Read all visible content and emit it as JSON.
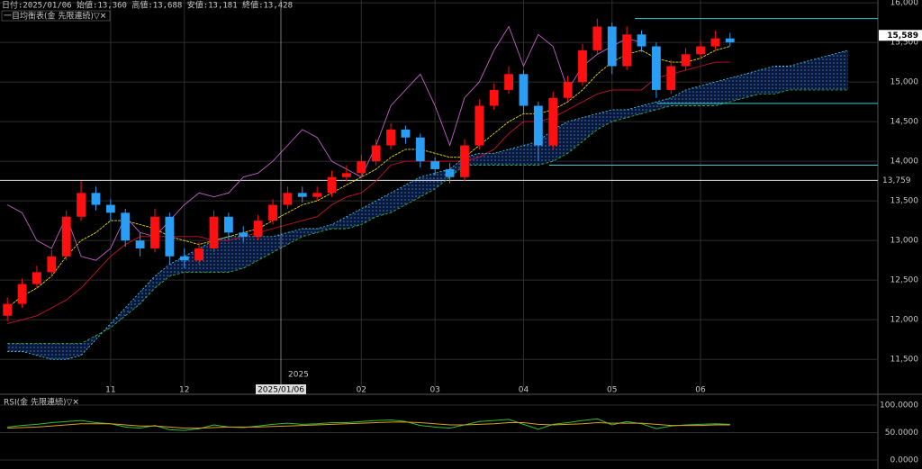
{
  "chart_data": [
    {
      "type": "candlestick",
      "info": "日付:2025/01/06 始値:13,360 高値:13,688 安値:13,181 終値:13,428",
      "title": "一目均衡表(金 先限連続)▽✕",
      "year_label": "2025",
      "cursor_label": "2025/01/06",
      "categories": [
        null,
        null,
        null,
        null,
        null,
        null,
        null,
        "11",
        null,
        null,
        null,
        null,
        "12",
        null,
        null,
        null,
        null,
        null,
        null,
        null,
        null,
        null,
        null,
        null,
        "02",
        null,
        null,
        null,
        null,
        "03",
        null,
        null,
        null,
        null,
        null,
        "04",
        null,
        null,
        null,
        null,
        null,
        "05",
        null,
        null,
        null,
        null,
        null,
        "06",
        null,
        null,
        null,
        null,
        null,
        null,
        null,
        null,
        null,
        null
      ],
      "open": [
        12050,
        12200,
        12450,
        12600,
        12800,
        13300,
        13600,
        13450,
        13350,
        13000,
        12900,
        13300,
        12800,
        12750,
        12900,
        13300,
        13100,
        13050,
        13250,
        13450,
        13600,
        13550,
        13600,
        13800,
        13850,
        14000,
        14200,
        14400,
        14300,
        14000,
        13900,
        13800,
        14200,
        14700,
        14900,
        15100,
        14700,
        14200,
        14800,
        15000,
        15400,
        15700,
        15200,
        15600,
        15450,
        14900,
        15200,
        15350,
        15450,
        15550,
        null,
        null,
        null,
        null,
        null,
        null,
        null,
        null
      ],
      "high": [
        12280,
        12520,
        12680,
        12880,
        13380,
        13750,
        13680,
        13520,
        13400,
        13100,
        13400,
        13350,
        12900,
        12980,
        13380,
        13350,
        13180,
        13320,
        13520,
        13680,
        13680,
        13680,
        13880,
        13950,
        14080,
        14280,
        14480,
        14450,
        14350,
        14050,
        13980,
        14280,
        14780,
        14980,
        15200,
        15150,
        14750,
        14880,
        15080,
        15480,
        15800,
        15750,
        15700,
        15650,
        15500,
        15280,
        15430,
        15520,
        15650,
        15620,
        null,
        null,
        null,
        null,
        null,
        null,
        null,
        null
      ],
      "low": [
        11980,
        12150,
        12400,
        12550,
        12750,
        13250,
        13380,
        13250,
        12920,
        12800,
        12850,
        12700,
        12650,
        12700,
        12850,
        13020,
        12980,
        13000,
        13200,
        13400,
        13480,
        13500,
        13550,
        13750,
        13800,
        13950,
        14150,
        14220,
        13920,
        13820,
        13720,
        13750,
        14150,
        14650,
        14850,
        14600,
        14000,
        14150,
        14750,
        14950,
        15350,
        15100,
        15150,
        15380,
        14800,
        14850,
        15150,
        15300,
        15400,
        15450,
        null,
        null,
        null,
        null,
        null,
        null,
        null,
        null
      ],
      "close": [
        12200,
        12450,
        12600,
        12800,
        13300,
        13600,
        13450,
        13350,
        13000,
        12900,
        13300,
        12800,
        12750,
        12900,
        13300,
        13100,
        13050,
        13250,
        13450,
        13600,
        13550,
        13600,
        13800,
        13850,
        14000,
        14200,
        14400,
        14300,
        14000,
        13900,
        13800,
        14200,
        14700,
        14900,
        15100,
        14700,
        14200,
        14800,
        15000,
        15400,
        15700,
        15200,
        15600,
        15450,
        14900,
        15200,
        15350,
        15450,
        15550,
        15500,
        null,
        null,
        null,
        null,
        null,
        null,
        null,
        null
      ],
      "up_color": "#ff1010",
      "down_color": "#2a9df4",
      "series": [
        {
          "color": "#e6d800",
          "values": [
            12150,
            12300,
            12400,
            12550,
            12800,
            13000,
            13100,
            13250,
            13250,
            13200,
            13150,
            13050,
            13000,
            12950,
            13000,
            13050,
            13100,
            13150,
            13250,
            13350,
            13450,
            13500,
            13600,
            13700,
            13800,
            13900,
            14050,
            14150,
            14150,
            14100,
            14050,
            14050,
            14200,
            14350,
            14500,
            14600,
            14600,
            14650,
            14750,
            14900,
            15100,
            15250,
            15350,
            15400,
            15300,
            15250,
            15250,
            15300,
            15400,
            15450,
            null,
            null,
            null,
            null,
            null,
            null,
            null,
            null
          ]
        },
        {
          "color": "#c8102e",
          "values": [
            11950,
            12000,
            12050,
            12150,
            12250,
            12400,
            12600,
            12800,
            12950,
            13050,
            13050,
            13050,
            13050,
            13050,
            13000,
            13000,
            13050,
            13100,
            13150,
            13200,
            13250,
            13300,
            13450,
            13550,
            13600,
            13750,
            13950,
            14000,
            14000,
            14000,
            14000,
            14000,
            14050,
            14150,
            14350,
            14500,
            14500,
            14550,
            14650,
            14750,
            14850,
            14900,
            14900,
            14900,
            15050,
            15100,
            15150,
            15200,
            15250,
            15250,
            null,
            null,
            null,
            null,
            null,
            null,
            null,
            null
          ]
        },
        {
          "color": "#40c8d0",
          "values": [
            11600,
            11600,
            11550,
            11500,
            11500,
            11550,
            11750,
            11950,
            12150,
            12350,
            12550,
            12700,
            12800,
            12900,
            13000,
            13050,
            13050,
            13050,
            13050,
            13100,
            13150,
            13150,
            13200,
            13300,
            13400,
            13500,
            13600,
            13700,
            13800,
            13850,
            13900,
            14050,
            14100,
            14100,
            14150,
            14200,
            14250,
            14400,
            14500,
            14550,
            14600,
            14650,
            14650,
            14700,
            14750,
            14800,
            14900,
            14950,
            15000,
            15050,
            15100,
            15150,
            15200,
            15200,
            15250,
            15300,
            15350,
            15400
          ]
        },
        {
          "color": "#30b030",
          "values": [
            11700,
            11700,
            11700,
            11700,
            11700,
            11700,
            11800,
            11900,
            12050,
            12200,
            12400,
            12550,
            12600,
            12600,
            12600,
            12600,
            12650,
            12750,
            12850,
            12950,
            13050,
            13100,
            13150,
            13150,
            13200,
            13300,
            13350,
            13450,
            13550,
            13650,
            13800,
            13950,
            13950,
            13950,
            13950,
            13950,
            13950,
            14000,
            14100,
            14250,
            14400,
            14500,
            14550,
            14600,
            14650,
            14700,
            14700,
            14700,
            14700,
            14750,
            14800,
            14850,
            14850,
            14900,
            14900,
            14900,
            14900,
            14900
          ]
        },
        {
          "color": "#c060c8",
          "values": [
            13450,
            13350,
            13000,
            12900,
            13300,
            12800,
            12750,
            12900,
            13300,
            13100,
            13050,
            13250,
            13450,
            13600,
            13550,
            13600,
            13800,
            13850,
            14000,
            14200,
            14400,
            14300,
            14000,
            13900,
            13800,
            14200,
            14700,
            14900,
            15100,
            14700,
            14200,
            14800,
            15000,
            15400,
            15700,
            15200,
            15600,
            15450,
            14900,
            15200,
            15350,
            15450,
            15550,
            15500,
            null,
            null,
            null,
            null,
            null,
            null,
            null,
            null,
            null,
            null,
            null,
            null,
            null,
            null
          ]
        }
      ],
      "cloud_color": "#3a78d8",
      "levels": [
        15800,
        14730,
        13950
      ],
      "level_color": "#40c8d0",
      "price_line": {
        "value": 13759,
        "label": "13,759"
      },
      "last_price": {
        "value": 15589,
        "label": "15,589"
      },
      "ylim": [
        11150,
        16035
      ],
      "yticks": [
        {
          "value": 11500,
          "label": "11,500"
        },
        {
          "value": 12000,
          "label": "12,000"
        },
        {
          "value": 12500,
          "label": "12,500"
        },
        {
          "value": 13000,
          "label": "13,000"
        },
        {
          "value": 13500,
          "label": "13,500"
        },
        {
          "value": 14000,
          "label": "14,000"
        },
        {
          "value": 14500,
          "label": "14,500"
        },
        {
          "value": 15000,
          "label": "15,000"
        },
        {
          "value": 15500,
          "label": "15,500"
        },
        {
          "value": 16000,
          "label": "16,000"
        }
      ],
      "grid": true
    },
    {
      "type": "line",
      "title": "RSI(金 先限連続)▽✕",
      "series": [
        {
          "color": "#30c030",
          "values": [
            60,
            63,
            65,
            68,
            70,
            72,
            68,
            66,
            60,
            58,
            63,
            55,
            54,
            57,
            64,
            60,
            59,
            62,
            65,
            67,
            65,
            66,
            68,
            68,
            70,
            72,
            73,
            70,
            63,
            60,
            58,
            64,
            70,
            72,
            74,
            65,
            56,
            65,
            68,
            72,
            75,
            64,
            70,
            66,
            57,
            62,
            64,
            65,
            66,
            65,
            null,
            null,
            null,
            null,
            null,
            null,
            null,
            null
          ]
        },
        {
          "color": "#e0a020",
          "values": [
            58,
            59,
            60,
            62,
            64,
            66,
            66,
            66,
            64,
            62,
            62,
            60,
            58,
            58,
            59,
            60,
            60,
            60,
            61,
            62,
            63,
            64,
            65,
            66,
            67,
            68,
            69,
            69,
            68,
            66,
            64,
            64,
            65,
            66,
            68,
            68,
            65,
            64,
            65,
            66,
            68,
            67,
            67,
            67,
            65,
            63,
            63,
            63,
            64,
            64,
            null,
            null,
            null,
            null,
            null,
            null,
            null,
            null
          ]
        }
      ],
      "ylim": [
        0,
        100
      ],
      "yticks": [
        {
          "value": 0,
          "label": "0.0000"
        },
        {
          "value": 50,
          "label": "50.0000"
        },
        {
          "value": 100,
          "label": "100.0000"
        }
      ],
      "grid": true
    }
  ]
}
